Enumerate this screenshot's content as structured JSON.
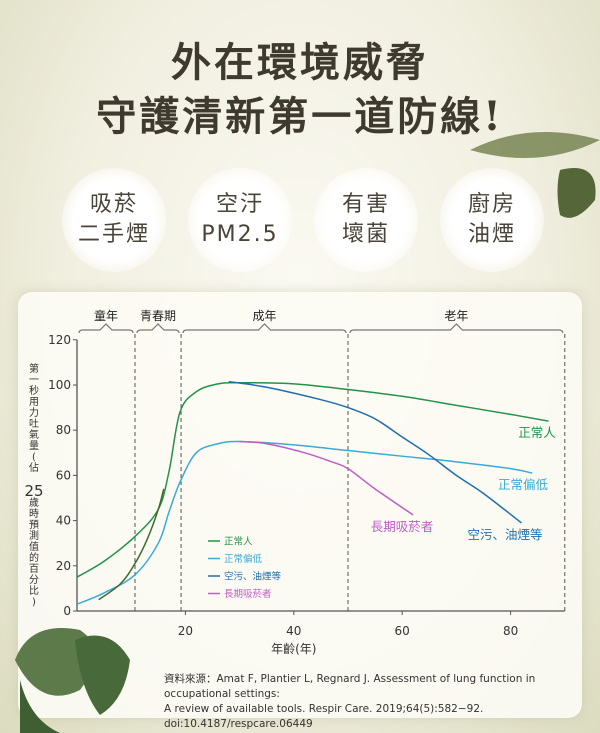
{
  "title": {
    "line1": "外在環境威脅",
    "line2": "守護清新第一道防線!"
  },
  "threats": [
    {
      "line1": "吸菸",
      "line2": "二手煙"
    },
    {
      "line1": "空汙",
      "line2": "PM2.5"
    },
    {
      "line1": "有害",
      "line2": "壞菌"
    },
    {
      "line1": "廚房",
      "line2": "油煙"
    }
  ],
  "chart_data": {
    "type": "line",
    "xlabel": "年齡(年)",
    "ylabel": "第一秒用力吐氣量(佔25歲時預測值的百分比)",
    "xlim": [
      0,
      90
    ],
    "ylim": [
      0,
      120
    ],
    "xticks": [
      20,
      40,
      60,
      80
    ],
    "yticks": [
      0,
      20,
      40,
      60,
      80,
      100,
      120
    ],
    "grid": false,
    "stages": [
      {
        "label": "童年",
        "from": 0,
        "to": 10.7
      },
      {
        "label": "青春期",
        "from": 10.7,
        "to": 19.2
      },
      {
        "label": "成年",
        "from": 19.2,
        "to": 50
      },
      {
        "label": "老年",
        "from": 50,
        "to": 90
      }
    ],
    "series": [
      {
        "name": "正常人",
        "color": "#23924a",
        "points": [
          [
            0,
            15
          ],
          [
            5,
            22
          ],
          [
            10.7,
            33
          ],
          [
            15,
            45
          ],
          [
            17,
            62
          ],
          [
            19,
            88
          ],
          [
            22,
            97
          ],
          [
            26,
            100.5
          ],
          [
            30,
            101
          ],
          [
            40,
            100.5
          ],
          [
            50,
            98
          ],
          [
            60,
            95
          ],
          [
            70,
            91
          ],
          [
            80,
            87
          ],
          [
            87,
            84
          ]
        ]
      },
      {
        "name": "正常偏低",
        "color": "#3aaad6",
        "points": [
          [
            0,
            3
          ],
          [
            5,
            8
          ],
          [
            10.7,
            16
          ],
          [
            15,
            30
          ],
          [
            17,
            44
          ],
          [
            19,
            57
          ],
          [
            22,
            70
          ],
          [
            26,
            74
          ],
          [
            30,
            75
          ],
          [
            40,
            73.5
          ],
          [
            50,
            71
          ],
          [
            60,
            68.5
          ],
          [
            70,
            66
          ],
          [
            80,
            63
          ],
          [
            84,
            61
          ]
        ]
      },
      {
        "name": "空污、油煙等",
        "color": "#1f6fae",
        "points": [
          [
            28,
            101.5
          ],
          [
            35,
            99
          ],
          [
            45,
            93.5
          ],
          [
            50,
            90
          ],
          [
            55,
            85
          ],
          [
            60,
            77
          ],
          [
            65,
            69
          ],
          [
            70,
            60
          ],
          [
            75,
            52
          ],
          [
            82,
            39
          ]
        ]
      },
      {
        "name": "長期吸菸者",
        "color": "#c05ec4",
        "points": [
          [
            30,
            75
          ],
          [
            35,
            74
          ],
          [
            42,
            70
          ],
          [
            47,
            66
          ],
          [
            50,
            63
          ],
          [
            55,
            54
          ],
          [
            62,
            42.5
          ]
        ]
      },
      {
        "name": "",
        "color": "#3e6a2c",
        "points": [
          [
            4,
            5
          ],
          [
            8,
            12
          ],
          [
            10.7,
            21
          ],
          [
            13,
            32
          ],
          [
            15,
            45
          ],
          [
            16,
            54
          ]
        ]
      }
    ]
  },
  "source": {
    "line1": "資料來源：Amat F, Plantier L, Regnard J. Assessment of lung function in occupational settings:",
    "line2": "A review of available tools. Respir Care. 2019;64(5):582−92. doi:10.4187/respcare.06449"
  }
}
